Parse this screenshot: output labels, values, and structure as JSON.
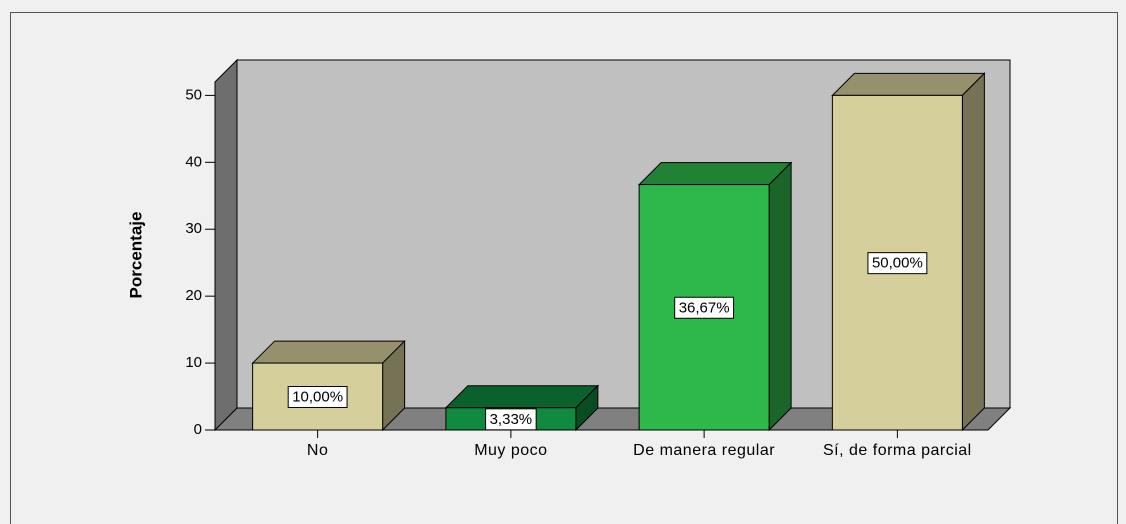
{
  "chart_data": {
    "type": "bar3d",
    "y_label": "Porcentaje",
    "categories": [
      "No",
      "Muy poco",
      "De manera regular",
      "Sí, de forma parcial"
    ],
    "values": [
      10,
      3.33,
      36.67,
      50
    ],
    "value_labels": [
      "10,00%",
      "3,33%",
      "36,67%",
      "50,00%"
    ],
    "colors": [
      "#d5cf9b",
      "#0f8a3e",
      "#2fb84a",
      "#d5cf9b"
    ],
    "ylim": [
      0,
      52
    ],
    "yticks": [
      0,
      10,
      20,
      30,
      40,
      50
    ],
    "grid": false
  }
}
